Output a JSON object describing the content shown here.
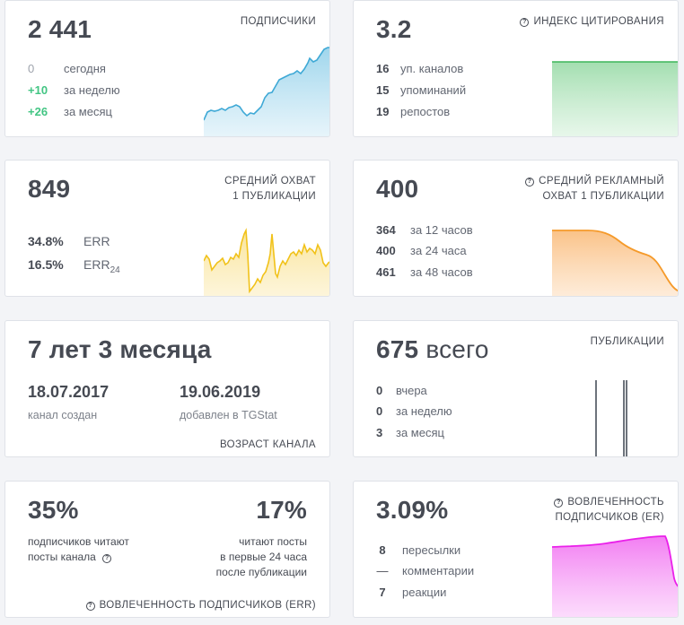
{
  "subscribers": {
    "value": "2 441",
    "label": "ПОДПИСЧИКИ",
    "rows": [
      {
        "value": "0",
        "text": "сегодня"
      },
      {
        "value": "+10",
        "text": "за неделю"
      },
      {
        "value": "+26",
        "text": "за месяц"
      }
    ],
    "color": "#3fa9d6"
  },
  "citation": {
    "value": "3.2",
    "label": "ИНДЕКС ЦИТИРОВАНИЯ",
    "rows": [
      {
        "value": "16",
        "text": "уп. каналов"
      },
      {
        "value": "15",
        "text": "упоминаний"
      },
      {
        "value": "19",
        "text": "репостов"
      }
    ],
    "color": "#3db65a"
  },
  "reach": {
    "value": "849",
    "label_line1": "СРЕДНИЙ ОХВАТ",
    "label_line2": "1 ПУБЛИКАЦИИ",
    "rows": [
      {
        "value": "34.8%",
        "text": "ERR"
      },
      {
        "value": "16.5%",
        "text": "ERR",
        "sub": "24"
      }
    ],
    "color": "#f1c21a"
  },
  "ad_reach": {
    "value": "400",
    "label_line1": "СРЕДНИЙ РЕКЛАМНЫЙ",
    "label_line2": "ОХВАТ 1 ПУБЛИКАЦИИ",
    "rows": [
      {
        "value": "364",
        "text": "за 12 часов"
      },
      {
        "value": "400",
        "text": "за 24 часа"
      },
      {
        "value": "461",
        "text": "за 48 часов"
      }
    ],
    "color": "#f59a2a"
  },
  "age": {
    "value": "7 лет 3 месяца",
    "created_date": "18.07.2017",
    "created_label": "канал создан",
    "added_date": "19.06.2019",
    "added_label": "добавлен в TGStat",
    "label": "ВОЗРАСТ КАНАЛА"
  },
  "posts": {
    "value": "675",
    "unit": "всего",
    "label": "ПУБЛИКАЦИИ",
    "rows": [
      {
        "value": "0",
        "text": "вчера"
      },
      {
        "value": "0",
        "text": "за неделю"
      },
      {
        "value": "3",
        "text": "за месяц"
      }
    ],
    "color": "#6d737c"
  },
  "err": {
    "left_value": "35%",
    "left_line1": "подписчиков читают",
    "left_line2": "посты канала",
    "right_value": "17%",
    "right_line1": "читают посты",
    "right_line2": "в первые 24 часа",
    "right_line3": "после публикации",
    "label": "ВОВЛЕЧЕННОСТЬ ПОДПИСЧИКОВ (ERR)"
  },
  "er": {
    "value": "3.09%",
    "label_line1": "ВОВЛЕЧЕННОСТЬ",
    "label_line2": "ПОДПИСЧИКОВ (ER)",
    "rows": [
      {
        "value": "8",
        "text": "пересылки"
      },
      {
        "value": "—",
        "text": "комментарии"
      },
      {
        "value": "7",
        "text": "реакции"
      }
    ],
    "color": "#ea20ea"
  },
  "icons": {
    "question": "?"
  }
}
